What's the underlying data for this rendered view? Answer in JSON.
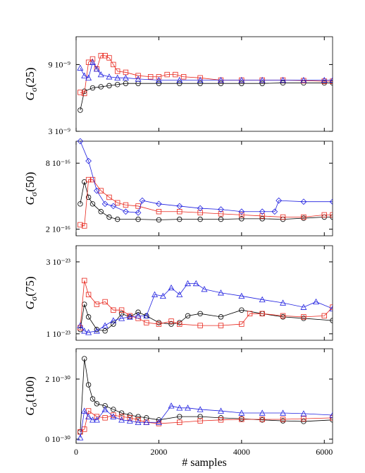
{
  "chart_data": [
    {
      "type": "line",
      "ylabel": {
        "main": "G",
        "sub": "σ",
        "arg": "(25)"
      },
      "xlim": [
        0,
        6200
      ],
      "xticks": [
        0,
        2000,
        4000,
        6000
      ],
      "show_xtick_labels": false,
      "ylim": [
        3e-09,
        1.15e-08
      ],
      "yticks": [
        {
          "value": 3e-09,
          "label": "3 10⁻⁹"
        },
        {
          "value": 9e-09,
          "label": "9 10⁻⁹"
        }
      ],
      "series": [
        {
          "color": "#000000",
          "marker": "circle",
          "x": [
            100,
            200,
            400,
            600,
            800,
            1000,
            1200,
            1500,
            2000,
            2500,
            3000,
            3500,
            4000,
            4500,
            5000,
            5500,
            6000,
            6200
          ],
          "values": [
            4.9e-09,
            6.6e-09,
            6.9e-09,
            7e-09,
            7.1e-09,
            7.2e-09,
            7.3e-09,
            7.3e-09,
            7.3e-09,
            7.3e-09,
            7.3e-09,
            7.3e-09,
            7.3e-09,
            7.3e-09,
            7.35e-09,
            7.35e-09,
            7.35e-09,
            7.35e-09
          ]
        },
        {
          "color": "#e8261c",
          "marker": "square",
          "x": [
            100,
            200,
            300,
            400,
            500,
            600,
            700,
            800,
            900,
            1000,
            1200,
            1500,
            1800,
            2000,
            2200,
            2400,
            2600,
            3000,
            3500,
            4000,
            4500,
            5000,
            5500,
            6000,
            6200
          ],
          "values": [
            6.5e-09,
            6.4e-09,
            9.2e-09,
            9.5e-09,
            8.6e-09,
            9.8e-09,
            9.8e-09,
            9.6e-09,
            9e-09,
            8.4e-09,
            8.3e-09,
            8e-09,
            7.9e-09,
            7.9e-09,
            8.1e-09,
            8.1e-09,
            7.9e-09,
            7.8e-09,
            7.6e-09,
            7.6e-09,
            7.6e-09,
            7.6e-09,
            7.55e-09,
            7.5e-09,
            7.5e-09
          ]
        },
        {
          "color": "#1f1fe0",
          "marker": "triangle",
          "x": [
            100,
            200,
            300,
            400,
            500,
            600,
            800,
            1000,
            1200,
            1500,
            2000,
            2500,
            3000,
            3500,
            4000,
            4500,
            5000,
            5500,
            6000,
            6200
          ],
          "values": [
            8.7e-09,
            8e-09,
            7.8e-09,
            9.2e-09,
            8.6e-09,
            8.1e-09,
            7.9e-09,
            7.8e-09,
            7.8e-09,
            7.7e-09,
            7.6e-09,
            7.6e-09,
            7.6e-09,
            7.6e-09,
            7.6e-09,
            7.6e-09,
            7.6e-09,
            7.6e-09,
            7.6e-09,
            7.6e-09
          ]
        }
      ]
    },
    {
      "type": "line",
      "ylabel": {
        "main": "G",
        "sub": "σ",
        "arg": "(50)"
      },
      "xlim": [
        0,
        6200
      ],
      "xticks": [
        0,
        2000,
        4000,
        6000
      ],
      "show_xtick_labels": false,
      "ylim": [
        1.4e-16,
        1e-15
      ],
      "yticks": [
        {
          "value": 2e-16,
          "label": "2 10⁻¹⁶"
        },
        {
          "value": 8e-16,
          "label": "8 10⁻¹⁶"
        }
      ],
      "series": [
        {
          "color": "#000000",
          "marker": "circle",
          "x": [
            100,
            200,
            300,
            400,
            600,
            800,
            1000,
            1500,
            2000,
            2500,
            3000,
            3500,
            4000,
            4500,
            5000,
            5500,
            6000,
            6200
          ],
          "values": [
            4.3e-16,
            6.3e-16,
            4.9e-16,
            4.3e-16,
            3.6e-16,
            3.1e-16,
            2.9e-16,
            2.9e-16,
            2.85e-16,
            2.9e-16,
            2.9e-16,
            2.9e-16,
            2.95e-16,
            2.95e-16,
            2.9e-16,
            3e-16,
            3.1e-16,
            3.1e-16
          ]
        },
        {
          "color": "#e8261c",
          "marker": "square",
          "x": [
            100,
            200,
            300,
            400,
            600,
            800,
            1000,
            1200,
            1500,
            2000,
            2500,
            3000,
            3500,
            4000,
            4500,
            5000,
            5500,
            6000,
            6200
          ],
          "values": [
            2.4e-16,
            2.3e-16,
            6.5e-16,
            6.5e-16,
            5.5e-16,
            4.9e-16,
            4.4e-16,
            4.2e-16,
            4.1e-16,
            3.6e-16,
            3.6e-16,
            3.5e-16,
            3.4e-16,
            3.3e-16,
            3.2e-16,
            3.1e-16,
            3.1e-16,
            3.3e-16,
            3.3e-16
          ]
        },
        {
          "color": "#1f1fe0",
          "marker": "diamond",
          "x": [
            100,
            300,
            500,
            700,
            900,
            1200,
            1500,
            1600,
            2000,
            2500,
            3000,
            3500,
            4000,
            4500,
            4800,
            4900,
            5500,
            6200
          ],
          "values": [
            1e-15,
            8.2e-16,
            5.5e-16,
            4.3e-16,
            4.1e-16,
            3.6e-16,
            3.5e-16,
            4.6e-16,
            4.3e-16,
            4.1e-16,
            3.9e-16,
            3.8e-16,
            3.6e-16,
            3.6e-16,
            3.6e-16,
            4.6e-16,
            4.5e-16,
            4.5e-16
          ]
        }
      ]
    },
    {
      "type": "line",
      "ylabel": {
        "main": "G",
        "sub": "σ",
        "arg": "(75)"
      },
      "xlim": [
        0,
        6200
      ],
      "xticks": [
        0,
        2000,
        4000,
        6000
      ],
      "show_xtick_labels": false,
      "ylim": [
        8.2e-24,
        3.45e-23
      ],
      "yticks": [
        {
          "value": 1e-23,
          "label": "1 10⁻²³"
        },
        {
          "value": 3e-23,
          "label": "3 10⁻²³"
        }
      ],
      "series": [
        {
          "color": "#000000",
          "marker": "circle",
          "x": [
            100,
            200,
            300,
            500,
            700,
            900,
            1100,
            1300,
            1500,
            1700,
            2000,
            2300,
            2500,
            2700,
            3000,
            3500,
            4000,
            4500,
            5000,
            5500,
            6200
          ],
          "values": [
            1.12e-23,
            1.82e-23,
            1.47e-23,
            1.12e-23,
            1.08e-23,
            1.27e-23,
            1.56e-23,
            1.47e-23,
            1.6e-23,
            1.5e-23,
            1.31e-23,
            1.27e-23,
            1.31e-23,
            1.5e-23,
            1.56e-23,
            1.47e-23,
            1.66e-23,
            1.56e-23,
            1.47e-23,
            1.43e-23,
            1.37e-23
          ]
        },
        {
          "color": "#e8261c",
          "marker": "square",
          "x": [
            100,
            200,
            300,
            500,
            700,
            900,
            1100,
            1300,
            1500,
            1700,
            2000,
            2300,
            2500,
            3000,
            3500,
            4000,
            4200,
            4500,
            5000,
            5500,
            6000,
            6200
          ],
          "values": [
            1.17e-23,
            2.48e-23,
            2.09e-23,
            1.82e-23,
            1.89e-23,
            1.66e-23,
            1.66e-23,
            1.5e-23,
            1.43e-23,
            1.31e-23,
            1.27e-23,
            1.35e-23,
            1.27e-23,
            1.23e-23,
            1.23e-23,
            1.27e-23,
            1.56e-23,
            1.56e-23,
            1.5e-23,
            1.47e-23,
            1.5e-23,
            1.74e-23
          ]
        },
        {
          "color": "#1f1fe0",
          "marker": "triangle",
          "x": [
            100,
            200,
            300,
            500,
            700,
            900,
            1100,
            1300,
            1500,
            1700,
            1900,
            2100,
            2300,
            2500,
            2700,
            2900,
            3100,
            3500,
            4000,
            4500,
            5000,
            5500,
            5800,
            6200
          ],
          "values": [
            1.23e-23,
            1.08e-23,
            1.04e-23,
            1.08e-23,
            1.23e-23,
            1.37e-23,
            1.43e-23,
            1.47e-23,
            1.5e-23,
            1.5e-23,
            2.09e-23,
            2.05e-23,
            2.28e-23,
            2.09e-23,
            2.4e-23,
            2.4e-23,
            2.24e-23,
            2.14e-23,
            2.05e-23,
            1.95e-23,
            1.86e-23,
            1.74e-23,
            1.89e-23,
            1.7e-23
          ]
        }
      ]
    },
    {
      "type": "line",
      "ylabel": {
        "main": "G",
        "sub": "σ",
        "arg": "(100)"
      },
      "xlabel": "# samples",
      "xlim": [
        0,
        6200
      ],
      "xticks": [
        0,
        2000,
        4000,
        6000
      ],
      "show_xtick_labels": true,
      "ylim": [
        -1.4e-31,
        3.01e-30
      ],
      "yticks": [
        {
          "value": 0,
          "label": "0 10⁻³⁰"
        },
        {
          "value": 2e-30,
          "label": "2 10⁻³⁰"
        }
      ],
      "series": [
        {
          "color": "#000000",
          "marker": "circle",
          "x": [
            100,
            200,
            300,
            400,
            500,
            700,
            900,
            1100,
            1300,
            1500,
            1700,
            2000,
            2500,
            3000,
            3500,
            4000,
            4500,
            5000,
            5500,
            6200
          ],
          "values": [
            2.4e-31,
            2.68e-30,
            1.81e-30,
            1.34e-30,
            1.18e-30,
            1.11e-30,
            9.9e-31,
            8.7e-31,
            8e-31,
            7.5e-31,
            7.1e-31,
            6.4e-31,
            7.5e-31,
            7.5e-31,
            7.1e-31,
            6.8e-31,
            6.4e-31,
            6.1e-31,
            5.9e-31,
            6.4e-31
          ]
        },
        {
          "color": "#e8261c",
          "marker": "square",
          "x": [
            100,
            200,
            300,
            500,
            700,
            900,
            1100,
            1300,
            1500,
            1700,
            2000,
            2500,
            3000,
            3500,
            4000,
            4500,
            5000,
            5500,
            6200
          ],
          "values": [
            2.4e-31,
            3.3e-31,
            9.4e-31,
            7.5e-31,
            7.1e-31,
            8e-31,
            7.5e-31,
            7.1e-31,
            6.4e-31,
            5.6e-31,
            5.2e-31,
            5.6e-31,
            6.1e-31,
            6.4e-31,
            6.6e-31,
            6.6e-31,
            6.6e-31,
            6.8e-31,
            7.1e-31
          ]
        },
        {
          "color": "#1f1fe0",
          "marker": "triangle",
          "x": [
            100,
            200,
            300,
            400,
            500,
            700,
            900,
            1100,
            1300,
            1500,
            1700,
            2000,
            2300,
            2500,
            2700,
            3000,
            3500,
            4000,
            4500,
            5000,
            5500,
            6200
          ],
          "values": [
            5e-32,
            9.4e-31,
            7.5e-31,
            6.4e-31,
            6.4e-31,
            9.9e-31,
            7.5e-31,
            6.4e-31,
            6.1e-31,
            5.6e-31,
            5.6e-31,
            5.6e-31,
            1.11e-30,
            1.04e-30,
            1.04e-30,
            9.9e-31,
            9.4e-31,
            8.7e-31,
            8.7e-31,
            8.7e-31,
            8.5e-31,
            8e-31
          ]
        }
      ]
    }
  ]
}
